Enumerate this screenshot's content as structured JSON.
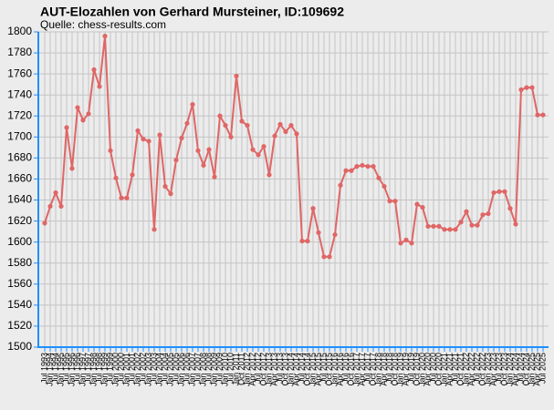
{
  "chart_data": {
    "type": "line",
    "title": "AUT-Elozahlen von Gerhard Mursteiner, ID:109692",
    "subtitle": "Quelle: chess-results.com",
    "categories": [
      "Jul 1993",
      "Jan 1994",
      "Jul 1994",
      "Jan 1995",
      "Jul 1995",
      "Jan 1996",
      "Jul 1996",
      "Jan 1997",
      "Jul 1997",
      "Jan 1998",
      "Jul 1998",
      "Jan 1999",
      "Jul 1999",
      "Jan 2000",
      "Jul 2000",
      "Jan 2001",
      "Jul 2001",
      "Jan 2002",
      "Jul 2002",
      "Jan 2003",
      "Jul 2003",
      "Jan 2004",
      "Jul 2004",
      "Jan 2005",
      "Jul 2005",
      "Jan 2006",
      "Jul 2006",
      "Jan 2007",
      "Jul 2007",
      "Jan 2008",
      "Jul 2008",
      "Jan 2009",
      "Jul 2009",
      "Jan 2010",
      "Jul 2010",
      "Jan 2011",
      "Oct 2011",
      "Jan 2012",
      "Apr 2012",
      "Jul 2012",
      "Oct 2012",
      "Jan 2013",
      "Apr 2013",
      "Jul 2013",
      "Oct 2013",
      "Jan 2014",
      "Apr 2014",
      "Jul 2014",
      "Oct 2014",
      "Jan 2015",
      "Apr 2015",
      "Jul 2015",
      "Oct 2015",
      "Jan 2016",
      "Apr 2016",
      "Jul 2016",
      "Oct 2016",
      "Jan 2017",
      "Apr 2017",
      "Jul 2017",
      "Oct 2017",
      "Jan 2018",
      "Apr 2018",
      "Jul 2018",
      "Oct 2018",
      "Jan 2019",
      "Apr 2019",
      "Jul 2019",
      "Oct 2019",
      "Jan 2020",
      "Apr 2020",
      "Jul 2020",
      "Oct 2020",
      "Jan 2021",
      "Apr 2021",
      "Jul 2021",
      "Oct 2021",
      "Jan 2022",
      "Apr 2022",
      "Jul 2022",
      "Oct 2022",
      "Jan 2023",
      "Apr 2023",
      "Jul 2023",
      "Oct 2023",
      "Jan 2024",
      "Apr 2024",
      "Jul 2024",
      "Oct 2024",
      "Jan 2025",
      "Apr 2025",
      "Jul 2025"
    ],
    "values": [
      1618,
      1634,
      1647,
      1634,
      1709,
      1670,
      1728,
      1716,
      1722,
      1764,
      1748,
      1796,
      1687,
      1661,
      1642,
      1642,
      1664,
      1706,
      1698,
      1696,
      1612,
      1702,
      1653,
      1646,
      1678,
      1699,
      1713,
      1731,
      1687,
      1673,
      1688,
      1662,
      1720,
      1711,
      1700,
      1758,
      1715,
      1711,
      1688,
      1683,
      1691,
      1664,
      1701,
      1712,
      1705,
      1711,
      1703,
      1601,
      1601,
      1632,
      1609,
      1586,
      1586,
      1607,
      1654,
      1668,
      1668,
      1672,
      1673,
      1672,
      1672,
      1661,
      1653,
      1639,
      1639,
      1599,
      1602,
      1599,
      1636,
      1633,
      1615,
      1615,
      1615,
      1612,
      1612,
      1612,
      1619,
      1629,
      1616,
      1616,
      1626,
      1627,
      1647,
      1648,
      1648,
      1632,
      1617,
      1745,
      1747,
      1747,
      1721,
      1721
    ],
    "color": "#e06666",
    "axis_color": "#1e90ff",
    "ylim": [
      1500,
      1800
    ],
    "yticks": [
      1500,
      1520,
      1540,
      1560,
      1580,
      1600,
      1620,
      1640,
      1660,
      1680,
      1700,
      1720,
      1740,
      1760,
      1780,
      1800
    ],
    "grid": true
  }
}
